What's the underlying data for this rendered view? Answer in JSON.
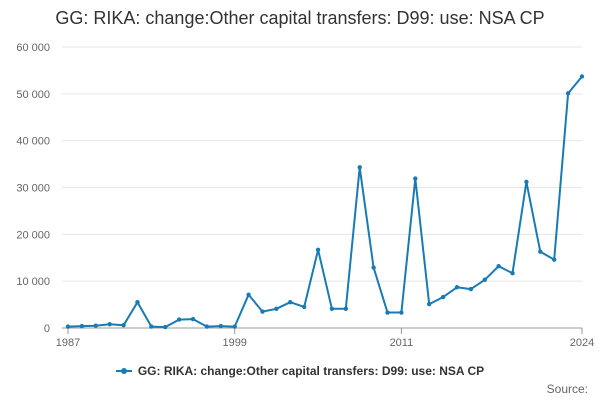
{
  "chart_data": {
    "type": "line",
    "title": "GG: RIKA: change:Other capital transfers: D99: use: NSA CP",
    "x_tick_labels": [
      "1987",
      "1999",
      "2011",
      "2024"
    ],
    "y_tick_labels": [
      "0",
      "10 000",
      "20 000",
      "30 000",
      "40 000",
      "50 000",
      "60 000"
    ],
    "ylim": [
      0,
      60000
    ],
    "xlim": [
      1987,
      2024
    ],
    "grid": true,
    "legend_position": "bottom",
    "series": [
      {
        "name": "GG: RIKA: change:Other capital transfers: D99: use: NSA CP",
        "color": "#1a7ab3",
        "x": [
          1987,
          1988,
          1989,
          1990,
          1991,
          1992,
          1993,
          1994,
          1995,
          1996,
          1997,
          1998,
          1999,
          2000,
          2001,
          2002,
          2003,
          2004,
          2005,
          2006,
          2007,
          2008,
          2009,
          2010,
          2011,
          2012,
          2013,
          2014,
          2015,
          2016,
          2017,
          2018,
          2019,
          2020,
          2021,
          2022,
          2023,
          2024
        ],
        "values": [
          300,
          400,
          500,
          800,
          600,
          5500,
          300,
          200,
          1800,
          1900,
          300,
          400,
          300,
          7100,
          3500,
          4100,
          5500,
          4500,
          16700,
          4100,
          4100,
          34300,
          12900,
          3300,
          3300,
          31900,
          5100,
          6600,
          8700,
          8300,
          10300,
          13200,
          11700,
          31200,
          16300,
          14600,
          50100,
          53700
        ]
      }
    ]
  },
  "legend": {
    "label": "GG: RIKA: change:Other capital transfers: D99: use: NSA CP"
  },
  "source": {
    "label": "Source:"
  }
}
